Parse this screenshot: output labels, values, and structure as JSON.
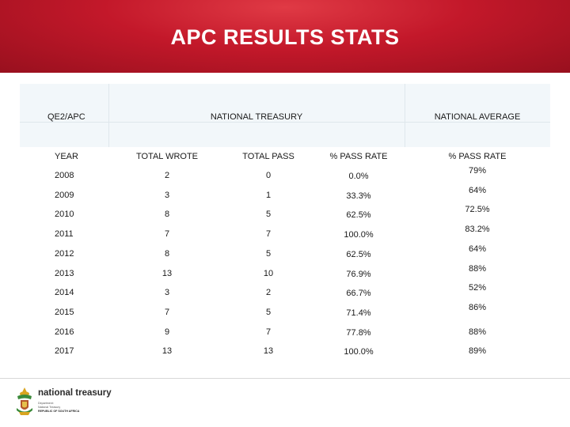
{
  "title": "APC RESULTS STATS",
  "table": {
    "group_headers": {
      "qe": "QE2/APC",
      "treasury": "NATIONAL TREASURY",
      "national": "NATIONAL AVERAGE"
    },
    "columns": [
      "YEAR",
      "TOTAL WROTE",
      "TOTAL PASS",
      "% PASS RATE",
      "% PASS RATE"
    ],
    "rows": [
      {
        "year": "2008",
        "wrote": "2",
        "pass": "0",
        "rate": "0.0%",
        "national": "79%"
      },
      {
        "year": "2009",
        "wrote": "3",
        "pass": "1",
        "rate": "33.3%",
        "national": "64%"
      },
      {
        "year": "2010",
        "wrote": "8",
        "pass": "5",
        "rate": "62.5%",
        "national": "72.5%"
      },
      {
        "year": "2011",
        "wrote": "7",
        "pass": "7",
        "rate": "100.0%",
        "national": "83.2%"
      },
      {
        "year": "2012",
        "wrote": "8",
        "pass": "5",
        "rate": "62.5%",
        "national": "64%"
      },
      {
        "year": "2013",
        "wrote": "13",
        "pass": "10",
        "rate": "76.9%",
        "national": "88%"
      },
      {
        "year": "2014",
        "wrote": "3",
        "pass": "2",
        "rate": "66.7%",
        "national": "52%"
      },
      {
        "year": "2015",
        "wrote": "7",
        "pass": "5",
        "rate": "71.4%",
        "national": "86%"
      },
      {
        "year": "2016",
        "wrote": "9",
        "pass": "7",
        "rate": "77.8%",
        "national": "88%"
      },
      {
        "year": "2017",
        "wrote": "13",
        "pass": "13",
        "rate": "100.0%",
        "national": "89%"
      }
    ]
  },
  "logo": {
    "name": "national treasury",
    "sub_lines": [
      "Department:",
      "National Treasury",
      "REPUBLIC OF SOUTH AFRICA"
    ]
  },
  "colors": {
    "banner_red": "#c3182a",
    "header_band": "#f2f7fa"
  }
}
